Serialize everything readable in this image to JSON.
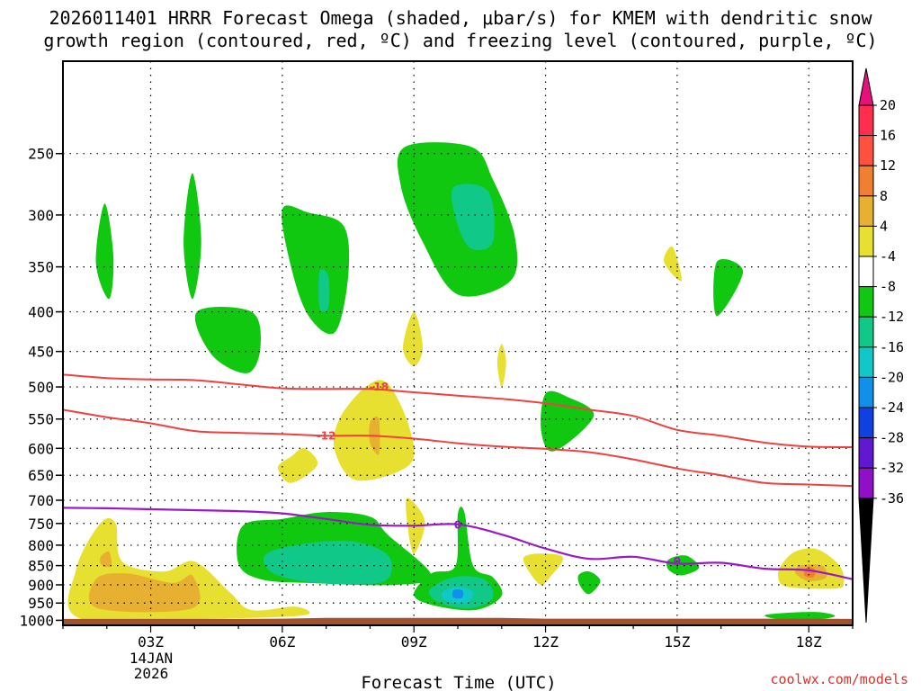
{
  "chart_data": {
    "type": "heatmap",
    "title_line1": "2026011401 HRRR Forecast Omega (shaded, μbar/s) for KMEM with dendritic snow",
    "title_line2": "growth region (contoured, red, ºC) and freezing level (contoured, purple, ºC)",
    "xlabel": "Forecast Time (UTC)",
    "x_ticks": [
      {
        "value": 3,
        "label": "03Z"
      },
      {
        "value": 6,
        "label": "06Z"
      },
      {
        "value": 9,
        "label": "09Z"
      },
      {
        "value": 12,
        "label": "12Z"
      },
      {
        "value": 15,
        "label": "15Z"
      },
      {
        "value": 18,
        "label": "18Z"
      }
    ],
    "date_label_line1": "14JAN",
    "date_label_line2": "2026",
    "xlim": [
      1,
      19
    ],
    "ylim": [
      1015,
      190
    ],
    "y_ticks": [
      250,
      300,
      350,
      400,
      450,
      500,
      550,
      600,
      650,
      700,
      750,
      800,
      850,
      900,
      950,
      1000
    ],
    "colorbar": {
      "labels": [
        "20",
        "16",
        "12",
        "8",
        "4",
        "-4",
        "-8",
        "-12",
        "-16",
        "-20",
        "-24",
        "-28",
        "-32",
        "-36"
      ],
      "colors": [
        "#ff2e4e",
        "#ff5040",
        "#f08030",
        "#e8b030",
        "#e8e030",
        "#ffffff",
        "#10c810",
        "#10c888",
        "#10c8c8",
        "#1090e8",
        "#1040e0",
        "#6018d0",
        "#9010c8",
        "#a0a0a0"
      ],
      "over_color": "#e8107a",
      "under_color": "#000000"
    },
    "omega_regions": [
      {
        "level": -4,
        "points": [
          [
            1.95,
            290
          ],
          [
            2.15,
            340
          ],
          [
            2.05,
            385
          ],
          [
            1.75,
            345
          ]
        ]
      },
      {
        "level": -4,
        "points": [
          [
            3.95,
            265
          ],
          [
            4.15,
            325
          ],
          [
            3.95,
            385
          ],
          [
            3.75,
            325
          ]
        ]
      },
      {
        "level": -4,
        "points": [
          [
            4.05,
            400
          ],
          [
            5.3,
            400
          ],
          [
            5.5,
            445
          ],
          [
            5.2,
            480
          ],
          [
            4.4,
            455
          ]
        ]
      },
      {
        "level": -4,
        "points": [
          [
            6.0,
            295
          ],
          [
            6.6,
            298
          ],
          [
            7.4,
            310
          ],
          [
            7.5,
            360
          ],
          [
            7.2,
            425
          ],
          [
            6.6,
            405
          ],
          [
            6.2,
            350
          ]
        ]
      },
      {
        "level": -8,
        "points": [
          [
            6.85,
            355
          ],
          [
            7.05,
            360
          ],
          [
            7.05,
            395
          ],
          [
            6.85,
            395
          ]
        ]
      },
      {
        "level": -4,
        "points": [
          [
            8.8,
            245
          ],
          [
            10.3,
            245
          ],
          [
            10.8,
            270
          ],
          [
            11.3,
            320
          ],
          [
            11.2,
            365
          ],
          [
            10.0,
            380
          ],
          [
            9.2,
            325
          ],
          [
            8.7,
            275
          ]
        ]
      },
      {
        "level": -8,
        "points": [
          [
            9.95,
            275
          ],
          [
            10.7,
            280
          ],
          [
            10.8,
            325
          ],
          [
            10.25,
            330
          ],
          [
            9.9,
            295
          ]
        ]
      },
      {
        "level": -4,
        "points": [
          [
            12.0,
            510
          ],
          [
            12.5,
            515
          ],
          [
            13.1,
            545
          ],
          [
            12.2,
            605
          ],
          [
            11.9,
            570
          ]
        ]
      },
      {
        "level": -4,
        "points": [
          [
            15.9,
            345
          ],
          [
            16.5,
            355
          ],
          [
            15.9,
            405
          ]
        ]
      },
      {
        "level": 4,
        "points": [
          [
            14.9,
            330
          ],
          [
            15.1,
            365
          ],
          [
            14.7,
            345
          ]
        ]
      },
      {
        "level": 4,
        "points": [
          [
            9.0,
            400
          ],
          [
            9.2,
            445
          ],
          [
            9.0,
            470
          ],
          [
            8.75,
            445
          ]
        ]
      },
      {
        "level": 4,
        "points": [
          [
            11.0,
            440
          ],
          [
            11.1,
            465
          ],
          [
            11.0,
            500
          ],
          [
            10.9,
            465
          ]
        ]
      },
      {
        "level": 4,
        "points": [
          [
            6.2,
            615
          ],
          [
            6.5,
            600
          ],
          [
            6.8,
            630
          ],
          [
            6.2,
            665
          ],
          [
            5.9,
            635
          ]
        ]
      },
      {
        "level": 4,
        "points": [
          [
            7.3,
            550
          ],
          [
            7.9,
            500
          ],
          [
            8.4,
            495
          ],
          [
            8.9,
            565
          ],
          [
            8.9,
            630
          ],
          [
            7.7,
            660
          ],
          [
            7.2,
            605
          ]
        ]
      },
      {
        "level": 8,
        "points": [
          [
            8.0,
            555
          ],
          [
            8.2,
            550
          ],
          [
            8.2,
            610
          ],
          [
            8.0,
            590
          ]
        ]
      },
      {
        "level": 4,
        "points": [
          [
            8.85,
            695
          ],
          [
            9.25,
            745
          ],
          [
            9.0,
            820
          ],
          [
            8.85,
            750
          ]
        ]
      },
      {
        "level": 4,
        "points": [
          [
            1.3,
            860
          ],
          [
            1.85,
            750
          ],
          [
            2.2,
            750
          ],
          [
            2.35,
            840
          ],
          [
            3.3,
            865
          ],
          [
            4.0,
            840
          ],
          [
            4.8,
            920
          ],
          [
            5.3,
            970
          ],
          [
            6.3,
            960
          ],
          [
            6.5,
            985
          ],
          [
            4.5,
            995
          ],
          [
            1.4,
            995
          ]
        ]
      },
      {
        "level": 8,
        "points": [
          [
            1.75,
            885
          ],
          [
            2.45,
            870
          ],
          [
            3.5,
            895
          ],
          [
            3.95,
            875
          ],
          [
            3.95,
            965
          ],
          [
            1.8,
            965
          ]
        ]
      },
      {
        "level": 8,
        "points": [
          [
            1.85,
            830
          ],
          [
            2.05,
            815
          ],
          [
            2.1,
            850
          ],
          [
            1.9,
            850
          ]
        ]
      },
      {
        "level": 4,
        "points": [
          [
            11.5,
            830
          ],
          [
            11.9,
            820
          ],
          [
            12.4,
            830
          ],
          [
            12.1,
            880
          ],
          [
            11.9,
            900
          ],
          [
            11.65,
            870
          ]
        ]
      },
      {
        "level": 4,
        "points": [
          [
            17.4,
            845
          ],
          [
            17.7,
            815
          ],
          [
            18.2,
            810
          ],
          [
            18.7,
            850
          ],
          [
            18.8,
            895
          ],
          [
            18.6,
            910
          ],
          [
            17.5,
            905
          ],
          [
            17.3,
            875
          ]
        ]
      },
      {
        "level": 8,
        "points": [
          [
            17.8,
            850
          ],
          [
            18.3,
            850
          ],
          [
            18.4,
            880
          ],
          [
            18.0,
            890
          ],
          [
            17.7,
            870
          ]
        ]
      },
      {
        "level": 12,
        "points": [
          [
            17.95,
            855
          ],
          [
            18.15,
            860
          ],
          [
            18.1,
            880
          ],
          [
            17.9,
            875
          ]
        ]
      },
      {
        "level": -4,
        "points": [
          [
            5.1,
            755
          ],
          [
            6.0,
            740
          ],
          [
            7.0,
            725
          ],
          [
            8.0,
            735
          ],
          [
            8.4,
            775
          ],
          [
            9.4,
            875
          ],
          [
            8.6,
            900
          ],
          [
            6.6,
            895
          ],
          [
            5.5,
            885
          ],
          [
            5.0,
            845
          ]
        ]
      },
      {
        "level": -8,
        "points": [
          [
            5.6,
            825
          ],
          [
            6.3,
            800
          ],
          [
            7.5,
            790
          ],
          [
            8.3,
            815
          ],
          [
            8.5,
            855
          ],
          [
            8.2,
            895
          ],
          [
            6.8,
            895
          ],
          [
            5.8,
            870
          ]
        ]
      },
      {
        "level": -4,
        "points": [
          [
            10.0,
            730
          ],
          [
            10.15,
            725
          ],
          [
            10.35,
            850
          ],
          [
            10.8,
            880
          ],
          [
            11.0,
            930
          ],
          [
            10.4,
            970
          ],
          [
            9.4,
            955
          ],
          [
            9.0,
            925
          ],
          [
            9.4,
            870
          ],
          [
            9.95,
            850
          ]
        ]
      },
      {
        "level": -8,
        "points": [
          [
            9.35,
            915
          ],
          [
            9.9,
            880
          ],
          [
            10.6,
            885
          ],
          [
            10.8,
            935
          ],
          [
            10.3,
            965
          ],
          [
            9.6,
            950
          ]
        ]
      },
      {
        "level": -12,
        "points": [
          [
            9.65,
            920
          ],
          [
            10.0,
            905
          ],
          [
            10.35,
            920
          ],
          [
            10.2,
            950
          ],
          [
            9.75,
            945
          ]
        ]
      },
      {
        "level": -16,
        "points": [
          [
            9.9,
            915
          ],
          [
            10.1,
            915
          ],
          [
            10.1,
            935
          ],
          [
            9.9,
            935
          ]
        ]
      },
      {
        "level": -4,
        "points": [
          [
            12.75,
            875
          ],
          [
            13.0,
            865
          ],
          [
            13.25,
            890
          ],
          [
            13.0,
            925
          ],
          [
            12.8,
            905
          ]
        ]
      },
      {
        "level": -4,
        "points": [
          [
            14.8,
            835
          ],
          [
            15.2,
            825
          ],
          [
            15.5,
            855
          ],
          [
            15.1,
            875
          ],
          [
            14.8,
            860
          ]
        ]
      },
      {
        "level": -4,
        "points": [
          [
            17.0,
            985
          ],
          [
            17.5,
            978
          ],
          [
            18.2,
            976
          ],
          [
            18.6,
            987
          ],
          [
            18.2,
            997
          ],
          [
            17.3,
            996
          ]
        ]
      }
    ],
    "dgz_contours": [
      {
        "label": "-18",
        "label_at": [
          8.2,
          500
        ],
        "points": [
          [
            1,
            482
          ],
          [
            2,
            487
          ],
          [
            3,
            489
          ],
          [
            4,
            490
          ],
          [
            5,
            496
          ],
          [
            6,
            502
          ],
          [
            7,
            503
          ],
          [
            8,
            503
          ],
          [
            9,
            508
          ],
          [
            10,
            513
          ],
          [
            11,
            518
          ],
          [
            12,
            525
          ],
          [
            13,
            535
          ],
          [
            14,
            545
          ],
          [
            15,
            568
          ],
          [
            16,
            578
          ],
          [
            17,
            590
          ],
          [
            18,
            597
          ],
          [
            19,
            598
          ]
        ]
      },
      {
        "label": "-12",
        "label_at": [
          7.0,
          578
        ],
        "points": [
          [
            1,
            535
          ],
          [
            2,
            547
          ],
          [
            3,
            557
          ],
          [
            4,
            570
          ],
          [
            5,
            573
          ],
          [
            6,
            575
          ],
          [
            7,
            578
          ],
          [
            8,
            578
          ],
          [
            9,
            583
          ],
          [
            10,
            591
          ],
          [
            11,
            597
          ],
          [
            12,
            601
          ],
          [
            13,
            607
          ],
          [
            14,
            620
          ],
          [
            15,
            637
          ],
          [
            16,
            650
          ],
          [
            17,
            665
          ],
          [
            18,
            668
          ],
          [
            19,
            671
          ]
        ]
      }
    ],
    "freezing_level": {
      "label": "0",
      "label_ats": [
        [
          10.0,
          753
        ],
        [
          15.0,
          840
        ]
      ],
      "points": [
        [
          1,
          716
        ],
        [
          2,
          717
        ],
        [
          3,
          719
        ],
        [
          4,
          721
        ],
        [
          5,
          723
        ],
        [
          6,
          728
        ],
        [
          7,
          740
        ],
        [
          8,
          753
        ],
        [
          9,
          755
        ],
        [
          10,
          752
        ],
        [
          11,
          775
        ],
        [
          12,
          808
        ],
        [
          13,
          833
        ],
        [
          14,
          828
        ],
        [
          15,
          845
        ],
        [
          16,
          843
        ],
        [
          17,
          858
        ],
        [
          18,
          862
        ],
        [
          19,
          885
        ]
      ]
    },
    "terrain": {
      "top": [
        [
          1,
          996
        ],
        [
          2,
          996
        ],
        [
          3,
          996
        ],
        [
          4,
          996
        ],
        [
          5,
          996
        ],
        [
          6,
          995
        ],
        [
          7,
          993
        ],
        [
          8,
          993
        ],
        [
          9,
          993
        ],
        [
          10,
          993
        ],
        [
          11,
          993
        ],
        [
          12,
          995
        ],
        [
          13,
          995
        ],
        [
          14,
          995
        ],
        [
          15,
          995
        ],
        [
          16,
          995
        ],
        [
          17,
          995
        ],
        [
          18,
          995
        ],
        [
          19,
          996
        ]
      ],
      "color": "#a0522d"
    },
    "contour_colors": {
      "dgz": "#f04040",
      "freezing": "#9b18c8"
    }
  },
  "credit": "coolwx.com/models"
}
